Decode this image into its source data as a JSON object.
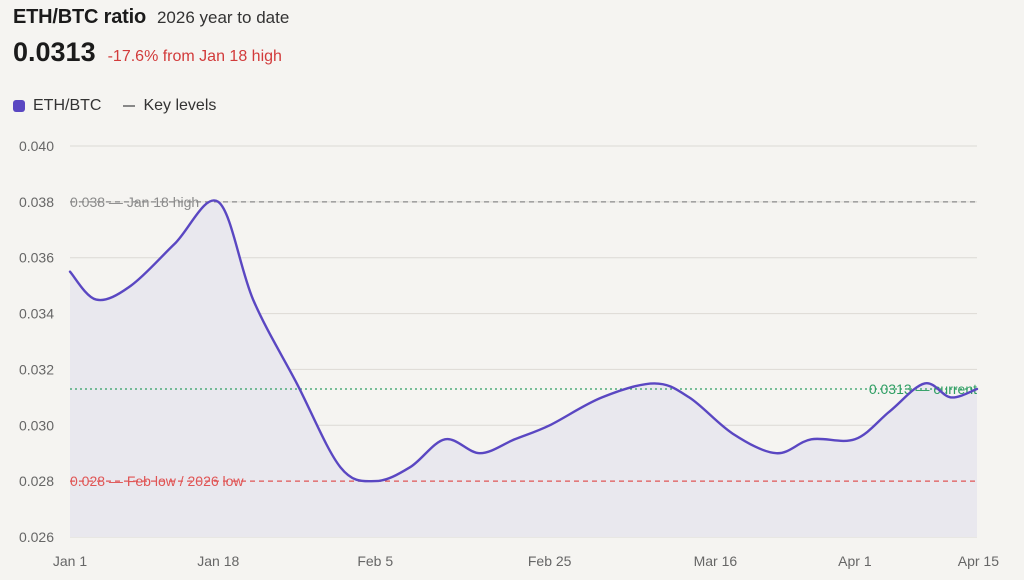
{
  "header": {
    "title": "ETH/BTC ratio",
    "subtitle": "2026 year to date",
    "value": "0.0313",
    "change": "-17.6% from Jan 18 high"
  },
  "legend": {
    "series_label": "ETH/BTC",
    "levels_label": "Key levels"
  },
  "colors": {
    "series": "#5a47c2",
    "area": "#e9e8ee",
    "grid": "#dcdad5",
    "high_level": "#8a8a8a",
    "low_level": "#e05555",
    "current_level": "#2e9e63",
    "change_text": "#d23b3b"
  },
  "chart_data": {
    "type": "line",
    "title": "ETH/BTC ratio",
    "ylim": [
      0.026,
      0.04
    ],
    "yticks": [
      "0.040",
      "0.038",
      "0.036",
      "0.034",
      "0.032",
      "0.030",
      "0.028",
      "0.026"
    ],
    "ytick_values": [
      0.04,
      0.038,
      0.036,
      0.034,
      0.032,
      0.03,
      0.028,
      0.026
    ],
    "xticks": [
      "Jan 1",
      "Jan 18",
      "Feb 5",
      "Feb 25",
      "Mar 16",
      "Apr 1",
      "Apr 15"
    ],
    "xtick_dates": [
      "2026-01-01",
      "2026-01-18",
      "2026-02-05",
      "2026-02-25",
      "2026-03-16",
      "2026-04-01",
      "2026-04-15"
    ],
    "xlim": [
      "2026-01-01",
      "2026-04-15"
    ],
    "grid": true,
    "series": [
      {
        "name": "ETH/BTC",
        "x": [
          "2026-01-01",
          "2026-01-04",
          "2026-01-08",
          "2026-01-13",
          "2026-01-18",
          "2026-01-22",
          "2026-01-27",
          "2026-02-01",
          "2026-02-05",
          "2026-02-09",
          "2026-02-13",
          "2026-02-17",
          "2026-02-21",
          "2026-02-25",
          "2026-03-03",
          "2026-03-09",
          "2026-03-13",
          "2026-03-18",
          "2026-03-23",
          "2026-03-27",
          "2026-04-01",
          "2026-04-05",
          "2026-04-09",
          "2026-04-12",
          "2026-04-15"
        ],
        "values": [
          0.0355,
          0.0345,
          0.035,
          0.0365,
          0.038,
          0.0345,
          0.0315,
          0.0285,
          0.028,
          0.0285,
          0.0295,
          0.029,
          0.0295,
          0.03,
          0.031,
          0.0315,
          0.031,
          0.0297,
          0.029,
          0.0295,
          0.0295,
          0.0305,
          0.0315,
          0.031,
          0.0313
        ]
      }
    ],
    "key_levels": [
      {
        "value": 0.038,
        "label": "0.038 — Jan 18 high",
        "style": "high"
      },
      {
        "value": 0.028,
        "label": "0.028 — Feb low / 2026 low",
        "style": "low"
      },
      {
        "value": 0.0313,
        "label": "0.0313 — current",
        "style": "current"
      }
    ]
  }
}
